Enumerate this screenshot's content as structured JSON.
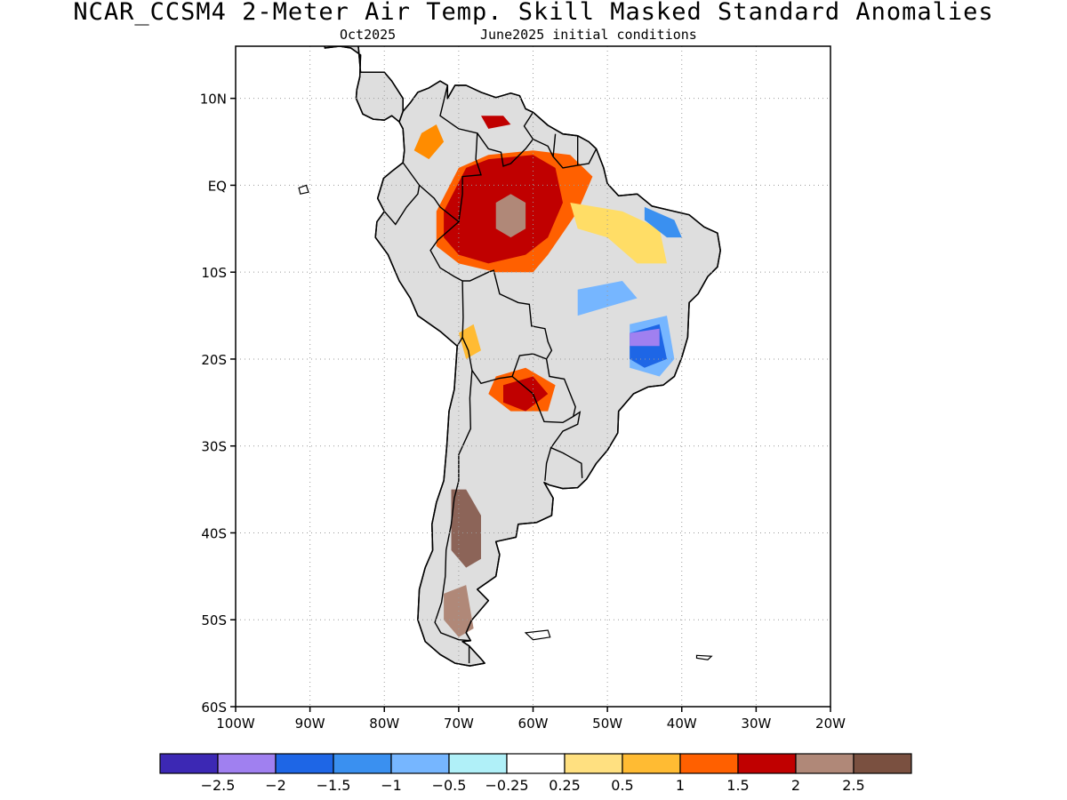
{
  "title": "NCAR_CCSM4 2-Meter Air Temp. Skill Masked Standard Anomalies",
  "subtitle_left": "Oct2025",
  "subtitle_right": "June2025 initial conditions",
  "map": {
    "lon_range": [
      -100,
      -20
    ],
    "lat_range": [
      -60,
      16
    ],
    "land_color": "#dedede",
    "border_color": "#000000",
    "grid_color": "#9a9a9a",
    "y_ticks": [
      {
        "lat": 10,
        "label": "10N"
      },
      {
        "lat": 0,
        "label": "EQ"
      },
      {
        "lat": -10,
        "label": "10S"
      },
      {
        "lat": -20,
        "label": "20S"
      },
      {
        "lat": -30,
        "label": "30S"
      },
      {
        "lat": -40,
        "label": "40S"
      },
      {
        "lat": -50,
        "label": "50S"
      },
      {
        "lat": -60,
        "label": "60S"
      }
    ],
    "x_ticks": [
      {
        "lon": -100,
        "label": "100W"
      },
      {
        "lon": -90,
        "label": "90W"
      },
      {
        "lon": -80,
        "label": "80W"
      },
      {
        "lon": -70,
        "label": "70W"
      },
      {
        "lon": -60,
        "label": "60W"
      },
      {
        "lon": -50,
        "label": "50W"
      },
      {
        "lon": -40,
        "label": "40W"
      },
      {
        "lon": -30,
        "label": "30W"
      },
      {
        "lon": -20,
        "label": "20W"
      }
    ],
    "anomaly_regions": [
      {
        "name": "amazon-warm-outer",
        "color": "#ff6000",
        "points": [
          [
            -73,
            -3
          ],
          [
            -70,
            2
          ],
          [
            -66,
            3.5
          ],
          [
            -60,
            4
          ],
          [
            -55,
            3.5
          ],
          [
            -52,
            1
          ],
          [
            -54,
            -3
          ],
          [
            -58,
            -8
          ],
          [
            -60,
            -10
          ],
          [
            -65,
            -10
          ],
          [
            -70,
            -9
          ],
          [
            -73,
            -7
          ]
        ]
      },
      {
        "name": "amazon-warm-core",
        "color": "#c00000",
        "points": [
          [
            -72,
            -3
          ],
          [
            -69,
            2
          ],
          [
            -66,
            3
          ],
          [
            -60,
            3.5
          ],
          [
            -57,
            2
          ],
          [
            -56,
            -2
          ],
          [
            -58,
            -6
          ],
          [
            -61,
            -8
          ],
          [
            -66,
            -9
          ],
          [
            -70,
            -8
          ],
          [
            -72,
            -6
          ]
        ]
      },
      {
        "name": "amazon-extreme-warm",
        "color": "#b08878",
        "points": [
          [
            -65,
            -2
          ],
          [
            -63,
            -1
          ],
          [
            -61,
            -2
          ],
          [
            -61,
            -5
          ],
          [
            -63,
            -6
          ],
          [
            -65,
            -5
          ]
        ]
      },
      {
        "name": "colombia-warm",
        "color": "#ff8c00",
        "points": [
          [
            -75,
            6
          ],
          [
            -73,
            7
          ],
          [
            -72,
            5
          ],
          [
            -74,
            3
          ],
          [
            -76,
            4
          ]
        ]
      },
      {
        "name": "venezuela-warm",
        "color": "#c00000",
        "points": [
          [
            -67,
            8
          ],
          [
            -64,
            8
          ],
          [
            -63,
            7
          ],
          [
            -66,
            6.5
          ]
        ]
      },
      {
        "name": "northeast-warm-light",
        "color": "#ffdd66",
        "points": [
          [
            -55,
            -2
          ],
          [
            -48,
            -3
          ],
          [
            -43,
            -5
          ],
          [
            -42,
            -9
          ],
          [
            -46,
            -9
          ],
          [
            -50,
            -6
          ],
          [
            -54,
            -5
          ]
        ]
      },
      {
        "name": "northeast-cool",
        "color": "#3a90f0",
        "points": [
          [
            -45,
            -2.5
          ],
          [
            -41,
            -4
          ],
          [
            -40,
            -6
          ],
          [
            -42,
            -6
          ],
          [
            -45,
            -4
          ]
        ]
      },
      {
        "name": "central-cool",
        "color": "#76b6ff",
        "points": [
          [
            -54,
            -12
          ],
          [
            -48,
            -11
          ],
          [
            -46,
            -13
          ],
          [
            -50,
            -14
          ],
          [
            -54,
            -15
          ]
        ]
      },
      {
        "name": "east-cool-light",
        "color": "#76b6ff",
        "points": [
          [
            -47,
            -16
          ],
          [
            -42,
            -15
          ],
          [
            -41,
            -20
          ],
          [
            -43,
            -22
          ],
          [
            -47,
            -21
          ]
        ]
      },
      {
        "name": "east-cool",
        "color": "#1e66e6",
        "points": [
          [
            -47,
            -17
          ],
          [
            -43,
            -16
          ],
          [
            -42,
            -20
          ],
          [
            -45,
            -21
          ],
          [
            -47,
            -20
          ]
        ]
      },
      {
        "name": "east-very-cool",
        "color": "#a080f0",
        "points": [
          [
            -47,
            -17
          ],
          [
            -43,
            -16.5
          ],
          [
            -43,
            -18.5
          ],
          [
            -47,
            -18.5
          ]
        ]
      },
      {
        "name": "bolivia-warm",
        "color": "#ffbb33",
        "points": [
          [
            -70,
            -17
          ],
          [
            -68,
            -16
          ],
          [
            -67,
            -19
          ],
          [
            -69,
            -20
          ]
        ]
      },
      {
        "name": "paraguay-warm-outer",
        "color": "#ff6000",
        "points": [
          [
            -65,
            -22
          ],
          [
            -61,
            -21
          ],
          [
            -57,
            -23
          ],
          [
            -58,
            -26
          ],
          [
            -63,
            -26
          ],
          [
            -66,
            -24
          ]
        ]
      },
      {
        "name": "paraguay-warm-core",
        "color": "#c00000",
        "points": [
          [
            -64,
            -23
          ],
          [
            -60,
            -22
          ],
          [
            -58,
            -24
          ],
          [
            -61,
            -26
          ],
          [
            -64,
            -25
          ]
        ]
      },
      {
        "name": "patagonia-extreme-warm",
        "color": "#8c6458",
        "points": [
          [
            -71,
            -35
          ],
          [
            -69,
            -35
          ],
          [
            -67,
            -38
          ],
          [
            -67,
            -43
          ],
          [
            -69,
            -44
          ],
          [
            -71,
            -42
          ]
        ]
      },
      {
        "name": "south-patagonia-extreme-warm",
        "color": "#b08878",
        "points": [
          [
            -72,
            -47
          ],
          [
            -69,
            -46
          ],
          [
            -68,
            -51
          ],
          [
            -70,
            -52
          ],
          [
            -72,
            -50
          ]
        ]
      }
    ],
    "extra_islands": [
      {
        "name": "falkland-islands",
        "points": [
          [
            -61,
            -51.5
          ],
          [
            -58,
            -51.2
          ],
          [
            -57.7,
            -52
          ],
          [
            -60,
            -52.3
          ]
        ]
      },
      {
        "name": "south-georgia",
        "points": [
          [
            -38,
            -54.1
          ],
          [
            -36,
            -54.2
          ],
          [
            -36.5,
            -54.6
          ],
          [
            -38,
            -54.4
          ]
        ]
      },
      {
        "name": "galapagos",
        "points": [
          [
            -91.5,
            -0.3
          ],
          [
            -90.5,
            0
          ],
          [
            -90.2,
            -0.8
          ],
          [
            -91.3,
            -1
          ]
        ]
      }
    ]
  },
  "colorbar": {
    "colors": [
      "#3c28b4",
      "#a080f0",
      "#1e66e6",
      "#3a90f0",
      "#76b6ff",
      "#b0f0f8",
      "#ffffff",
      "#ffe080",
      "#ffbb33",
      "#ff6000",
      "#c00000",
      "#b08878",
      "#7a5040"
    ],
    "labels": [
      "-2.5",
      "-2",
      "-1.5",
      "-1",
      "-0.5",
      "-0.25",
      "0.25",
      "0.5",
      "1",
      "1.5",
      "2",
      "2.5"
    ]
  }
}
